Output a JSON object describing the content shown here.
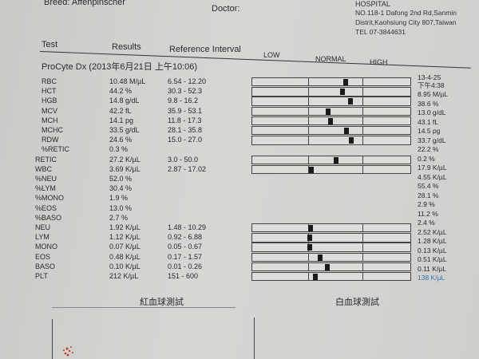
{
  "header": {
    "breed": "Breed:  Affenpinscher",
    "doctor": "Doctor:",
    "hospital": "HOSPITAL",
    "address1": "NO.118-1 Dafong 2nd Rd,Sanmin",
    "address2": "Distrit,Kaohsiung City 807,Taiwan",
    "tel": "TEL 07-3844631"
  },
  "columns": {
    "test": "Test",
    "results": "Results",
    "reference": "Reference Interval",
    "low": "LOW",
    "normal": "NORMAL",
    "high": "HIGH"
  },
  "instrument": "ProCyte Dx (2013年6月21日 上午10:06)",
  "previous": {
    "date": "13-4-25",
    "time": "下午4:38"
  },
  "rows": [
    {
      "test": "RBC",
      "result": "10.48 M/µL",
      "ref": "6.54 - 12.20",
      "value": 10.48,
      "low": 6.54,
      "high": 12.2,
      "prev": "8.95 M/µL"
    },
    {
      "test": "HCT",
      "result": "44.2 %",
      "ref": "30.3 - 52.3",
      "value": 44.2,
      "low": 30.3,
      "high": 52.3,
      "prev": "38.6 %"
    },
    {
      "test": "HGB",
      "result": "14.8 g/dL",
      "ref": "9.8 - 16.2",
      "value": 14.8,
      "low": 9.8,
      "high": 16.2,
      "prev": "13.0 g/dL"
    },
    {
      "test": "MCV",
      "result": "42.2 fL",
      "ref": "35.9 - 53.1",
      "value": 42.2,
      "low": 35.9,
      "high": 53.1,
      "prev": "43.1 fL"
    },
    {
      "test": "MCH",
      "result": "14.1 pg",
      "ref": "11.8 - 17.3",
      "value": 14.1,
      "low": 11.8,
      "high": 17.3,
      "prev": "14.5 pg"
    },
    {
      "test": "MCHC",
      "result": "33.5 g/dL",
      "ref": "28.1 - 35.8",
      "value": 33.5,
      "low": 28.1,
      "high": 35.8,
      "prev": "33.7 g/dL"
    },
    {
      "test": "RDW",
      "result": "24.6 %",
      "ref": "15.0 - 27.0",
      "value": 24.6,
      "low": 15.0,
      "high": 27.0,
      "prev": "22.2 %"
    },
    {
      "test": "%RETIC",
      "result": "0.3 %",
      "ref": "",
      "prev": "0.2 %"
    },
    {
      "test": "RETIC",
      "result": "27.2 K/µL",
      "ref": "3.0 - 50.0",
      "value": 27.2,
      "low": 3.0,
      "high": 50.0,
      "prev": "17.9 K/µL"
    },
    {
      "test": "WBC",
      "result": "3.69 K/µL",
      "ref": "2.87 - 17.02",
      "value": 3.69,
      "low": 2.87,
      "high": 17.02,
      "prev": "4.55 K/µL"
    },
    {
      "test": "%NEU",
      "result": "52.0 %",
      "ref": "",
      "prev": "55.4 %"
    },
    {
      "test": "%LYM",
      "result": "30.4 %",
      "ref": "",
      "prev": "28.1 %"
    },
    {
      "test": "%MONO",
      "result": "1.9 %",
      "ref": "",
      "prev": "2.9 %"
    },
    {
      "test": "%EOS",
      "result": "13.0 %",
      "ref": "",
      "prev": "11.2 %"
    },
    {
      "test": "%BASO",
      "result": "2.7 %",
      "ref": "",
      "prev": "2.4 %"
    },
    {
      "test": "NEU",
      "result": "1.92 K/µL",
      "ref": "1.48 - 10.29",
      "value": 1.92,
      "low": 1.48,
      "high": 10.29,
      "prev": "2.52 K/µL"
    },
    {
      "test": "LYM",
      "result": "1.12 K/µL",
      "ref": "0.92 - 6.88",
      "value": 1.12,
      "low": 0.92,
      "high": 6.88,
      "prev": "1.28 K/µL"
    },
    {
      "test": "MONO",
      "result": "0.07 K/µL",
      "ref": "0.05 - 0.67",
      "value": 0.07,
      "low": 0.05,
      "high": 0.67,
      "prev": "0.13 K/µL"
    },
    {
      "test": "EOS",
      "result": "0.48 K/µL",
      "ref": "0.17 - 1.57",
      "value": 0.48,
      "low": 0.17,
      "high": 1.57,
      "prev": "0.51 K/µL"
    },
    {
      "test": "BASO",
      "result": "0.10 K/µL",
      "ref": "0.01 - 0.26",
      "value": 0.1,
      "low": 0.01,
      "high": 0.26,
      "prev": "0.11 K/µL"
    },
    {
      "test": "PLT",
      "result": "212 K/µL",
      "ref": "151 - 600",
      "value": 212,
      "low": 151,
      "high": 600,
      "prev": "138 K/µL",
      "prev_color": "#3a6fb0"
    }
  ],
  "plots": {
    "rbc_title": "紅血球測試",
    "wbc_title": "白血球測試"
  },
  "colors": {
    "paper": "#d3d3d0",
    "ink": "#2a2a2a",
    "marker": "#1a1a1a",
    "scatter": "#c0392b"
  }
}
